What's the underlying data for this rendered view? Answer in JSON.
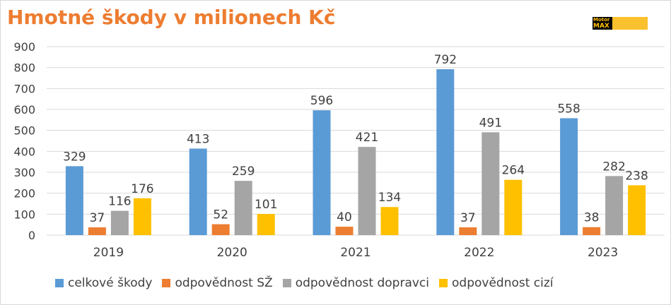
{
  "title": "Hmotné škody v milionech Kč",
  "logo": {
    "line1": "Motor",
    "line2": "MAX"
  },
  "chart_data": {
    "type": "bar",
    "categories": [
      "2019",
      "2020",
      "2021",
      "2022",
      "2023"
    ],
    "series": [
      {
        "name": "celkové škody",
        "color": "#5b9bd5",
        "values": [
          329,
          413,
          596,
          792,
          558
        ]
      },
      {
        "name": "odpovědnost SŽ",
        "color": "#ed7d31",
        "values": [
          37,
          52,
          40,
          37,
          38
        ]
      },
      {
        "name": "odpovědnost dopravci",
        "color": "#a5a5a5",
        "values": [
          116,
          259,
          421,
          491,
          282
        ]
      },
      {
        "name": "odpovědnost cizí",
        "color": "#ffc000",
        "values": [
          176,
          101,
          134,
          264,
          238
        ]
      }
    ],
    "ylim": [
      0,
      900
    ],
    "yticks": [
      "0",
      "100",
      "200",
      "300",
      "400",
      "500",
      "600",
      "700",
      "800",
      "900"
    ],
    "grid": true,
    "legend": "bottom"
  }
}
